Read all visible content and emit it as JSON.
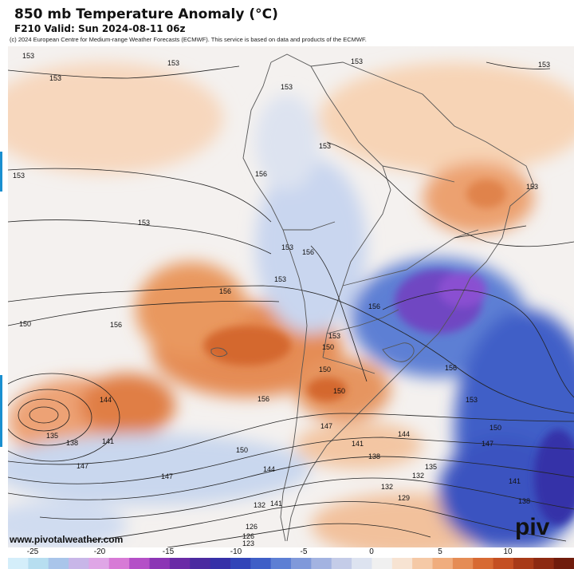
{
  "header": {
    "title": "850 mb Temperature Anomaly (°C)",
    "subtitle": "F210 Valid: Sun 2024-08-11 06z",
    "copyright": "(c) 2024 European Centre for Medium-range Weather Forecasts (ECMWF). This service is based on data and products of the ECMWF."
  },
  "watermark": "www.pivotalweather.com",
  "logo": "piv",
  "contour_labels": [
    "153",
    "153",
    "153",
    "153",
    "153",
    "153",
    "153",
    "153",
    "153",
    "153",
    "153",
    "153",
    "156",
    "156",
    "156",
    "156",
    "156",
    "156",
    "156",
    "150",
    "150",
    "150",
    "150",
    "150",
    "150",
    "147",
    "147",
    "147",
    "147",
    "144",
    "144",
    "144",
    "141",
    "141",
    "141",
    "138",
    "138",
    "138",
    "135",
    "135",
    "132",
    "132",
    "132",
    "129",
    "126",
    "126",
    "123",
    "141",
    "153",
    "153"
  ],
  "colorbar": {
    "ticks": [
      "-25",
      "-20",
      "-15",
      "-10",
      "-5",
      "0",
      "5",
      "10"
    ],
    "colors": [
      "#d4eefa",
      "#b7def0",
      "#a9c5ea",
      "#c8b6e8",
      "#dfa6e6",
      "#d77ad6",
      "#b44fc7",
      "#8c35b5",
      "#6a2aa6",
      "#4b2aa0",
      "#3630a8",
      "#3245b8",
      "#3f5fc7",
      "#5d7fd4",
      "#8099da",
      "#a3b3e1",
      "#c4cce8",
      "#dde3f0",
      "#f0f0f0",
      "#f7e3d2",
      "#f5c9a6",
      "#f0ad7e",
      "#e58c55",
      "#d76a33",
      "#c44f22",
      "#a83a18",
      "#8d2a12",
      "#701c0c"
    ]
  }
}
